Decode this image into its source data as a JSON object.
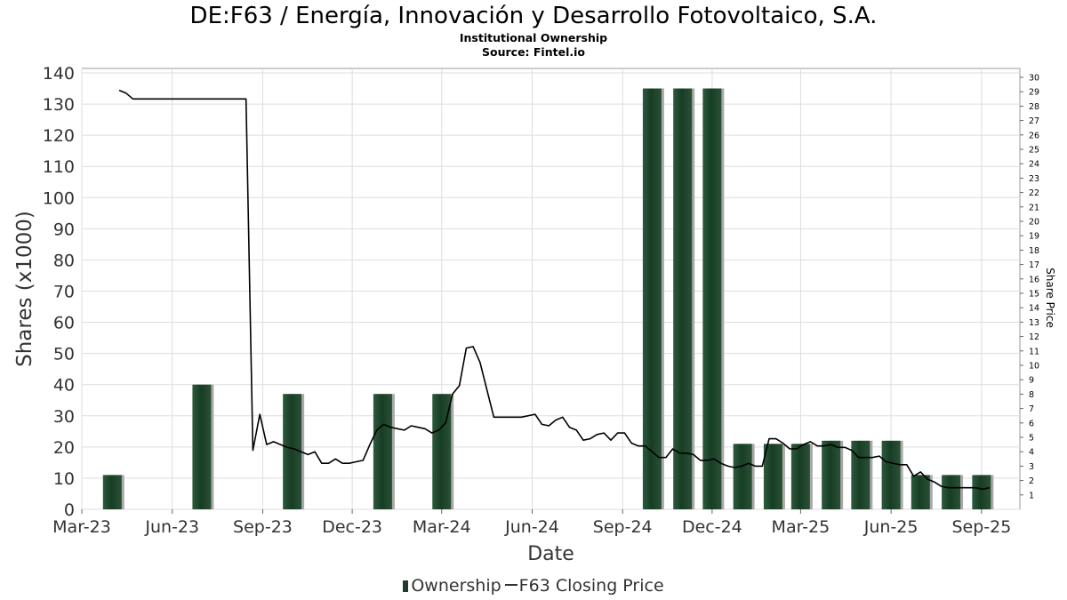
{
  "title": "DE:F63 / Energía, Innovación y Desarrollo Fotovoltaico, S.A.",
  "subtitle": "Institutional Ownership",
  "source": "Source: Fintel.io",
  "legend": {
    "ownership": "Ownership",
    "price": "F63 Closing Price"
  },
  "colors": {
    "bar": "#1f4a2e",
    "bar_shadow": "#a9a9a9",
    "line": "#000000",
    "grid": "#dddddd"
  },
  "chart_data": {
    "type": "bar",
    "title": "DE:F63 / Energía, Innovación y Desarrollo Fotovoltaico, S.A.",
    "xlabel": "Date",
    "ylabel": "Shares (x1000)",
    "y2label": "Share Price",
    "ylim": [
      0,
      140
    ],
    "y2lim": [
      0,
      30
    ],
    "xlim": [
      "2023-03-01",
      "2025-10-10"
    ],
    "yticks": [
      0,
      10,
      20,
      30,
      40,
      50,
      60,
      70,
      80,
      90,
      100,
      110,
      120,
      130,
      140
    ],
    "y2ticks": [
      1,
      2,
      3,
      4,
      5,
      6,
      7,
      8,
      9,
      10,
      11,
      12,
      13,
      14,
      15,
      16,
      17,
      18,
      19,
      20,
      21,
      22,
      23,
      24,
      25,
      26,
      27,
      28,
      29,
      30
    ],
    "xticks": [
      {
        "date": "2023-03-01",
        "label": "Mar-23"
      },
      {
        "date": "2023-06-01",
        "label": "Jun-23"
      },
      {
        "date": "2023-09-01",
        "label": "Sep-23"
      },
      {
        "date": "2023-12-01",
        "label": "Dec-23"
      },
      {
        "date": "2024-03-01",
        "label": "Mar-24"
      },
      {
        "date": "2024-06-01",
        "label": "Jun-24"
      },
      {
        "date": "2024-09-01",
        "label": "Sep-24"
      },
      {
        "date": "2024-12-01",
        "label": "Dec-24"
      },
      {
        "date": "2025-03-01",
        "label": "Mar-25"
      },
      {
        "date": "2025-06-01",
        "label": "Jun-25"
      },
      {
        "date": "2025-09-01",
        "label": "Sep-25"
      }
    ],
    "grid": true,
    "legend_position": "bottom",
    "series": [
      {
        "name": "Ownership",
        "type": "bar",
        "axis": "left",
        "points": [
          {
            "x": "2023-04-01",
            "y": 11
          },
          {
            "x": "2023-07-01",
            "y": 40
          },
          {
            "x": "2023-10-01",
            "y": 37
          },
          {
            "x": "2024-01-01",
            "y": 37
          },
          {
            "x": "2024-03-01",
            "y": 37
          },
          {
            "x": "2024-10-01",
            "y": 135
          },
          {
            "x": "2024-11-01",
            "y": 135
          },
          {
            "x": "2024-12-01",
            "y": 135
          },
          {
            "x": "2025-01-01",
            "y": 21
          },
          {
            "x": "2025-02-01",
            "y": 21
          },
          {
            "x": "2025-03-01",
            "y": 21
          },
          {
            "x": "2025-04-01",
            "y": 22
          },
          {
            "x": "2025-05-01",
            "y": 22
          },
          {
            "x": "2025-06-01",
            "y": 22
          },
          {
            "x": "2025-07-01",
            "y": 11
          },
          {
            "x": "2025-08-01",
            "y": 11
          },
          {
            "x": "2025-09-01",
            "y": 11
          }
        ]
      },
      {
        "name": "F63 Closing Price",
        "type": "line",
        "axis": "right",
        "points": [
          {
            "x": "2023-04-08",
            "y": 29.1
          },
          {
            "x": "2023-04-15",
            "y": 28.9
          },
          {
            "x": "2023-04-22",
            "y": 28.5
          },
          {
            "x": "2023-05-15",
            "y": 28.5
          },
          {
            "x": "2023-06-15",
            "y": 28.5
          },
          {
            "x": "2023-07-15",
            "y": 28.5
          },
          {
            "x": "2023-08-15",
            "y": 28.5
          },
          {
            "x": "2023-08-22",
            "y": 4.1
          },
          {
            "x": "2023-08-29",
            "y": 6.6
          },
          {
            "x": "2023-09-05",
            "y": 4.5
          },
          {
            "x": "2023-09-12",
            "y": 4.7
          },
          {
            "x": "2023-09-19",
            "y": 4.5
          },
          {
            "x": "2023-09-26",
            "y": 4.3
          },
          {
            "x": "2023-10-03",
            "y": 4.2
          },
          {
            "x": "2023-10-10",
            "y": 4.0
          },
          {
            "x": "2023-10-17",
            "y": 3.8
          },
          {
            "x": "2023-10-24",
            "y": 4.0
          },
          {
            "x": "2023-10-31",
            "y": 3.2
          },
          {
            "x": "2023-11-07",
            "y": 3.2
          },
          {
            "x": "2023-11-14",
            "y": 3.5
          },
          {
            "x": "2023-11-21",
            "y": 3.2
          },
          {
            "x": "2023-11-28",
            "y": 3.2
          },
          {
            "x": "2023-12-05",
            "y": 3.3
          },
          {
            "x": "2023-12-12",
            "y": 3.4
          },
          {
            "x": "2023-12-19",
            "y": 4.5
          },
          {
            "x": "2023-12-26",
            "y": 5.5
          },
          {
            "x": "2024-01-02",
            "y": 5.9
          },
          {
            "x": "2024-01-09",
            "y": 5.7
          },
          {
            "x": "2024-01-16",
            "y": 5.6
          },
          {
            "x": "2024-01-23",
            "y": 5.5
          },
          {
            "x": "2024-01-30",
            "y": 5.8
          },
          {
            "x": "2024-02-06",
            "y": 5.7
          },
          {
            "x": "2024-02-13",
            "y": 5.6
          },
          {
            "x": "2024-02-20",
            "y": 5.3
          },
          {
            "x": "2024-02-27",
            "y": 5.5
          },
          {
            "x": "2024-03-05",
            "y": 6.0
          },
          {
            "x": "2024-03-12",
            "y": 8.0
          },
          {
            "x": "2024-03-19",
            "y": 8.6
          },
          {
            "x": "2024-03-26",
            "y": 11.2
          },
          {
            "x": "2024-04-02",
            "y": 11.3
          },
          {
            "x": "2024-04-09",
            "y": 10.2
          },
          {
            "x": "2024-04-16",
            "y": 8.3
          },
          {
            "x": "2024-04-23",
            "y": 6.4
          },
          {
            "x": "2024-05-07",
            "y": 6.4
          },
          {
            "x": "2024-05-21",
            "y": 6.4
          },
          {
            "x": "2024-06-04",
            "y": 6.6
          },
          {
            "x": "2024-06-11",
            "y": 5.9
          },
          {
            "x": "2024-06-18",
            "y": 5.8
          },
          {
            "x": "2024-06-25",
            "y": 6.2
          },
          {
            "x": "2024-07-02",
            "y": 6.4
          },
          {
            "x": "2024-07-09",
            "y": 5.7
          },
          {
            "x": "2024-07-16",
            "y": 5.5
          },
          {
            "x": "2024-07-23",
            "y": 4.8
          },
          {
            "x": "2024-07-30",
            "y": 4.9
          },
          {
            "x": "2024-08-06",
            "y": 5.2
          },
          {
            "x": "2024-08-13",
            "y": 5.3
          },
          {
            "x": "2024-08-20",
            "y": 4.8
          },
          {
            "x": "2024-08-27",
            "y": 5.3
          },
          {
            "x": "2024-09-03",
            "y": 5.3
          },
          {
            "x": "2024-09-10",
            "y": 4.6
          },
          {
            "x": "2024-09-17",
            "y": 4.4
          },
          {
            "x": "2024-09-24",
            "y": 4.4
          },
          {
            "x": "2024-10-01",
            "y": 4.0
          },
          {
            "x": "2024-10-08",
            "y": 3.6
          },
          {
            "x": "2024-10-15",
            "y": 3.6
          },
          {
            "x": "2024-10-22",
            "y": 4.2
          },
          {
            "x": "2024-10-29",
            "y": 3.9
          },
          {
            "x": "2024-11-05",
            "y": 3.9
          },
          {
            "x": "2024-11-12",
            "y": 3.8
          },
          {
            "x": "2024-11-19",
            "y": 3.4
          },
          {
            "x": "2024-11-26",
            "y": 3.4
          },
          {
            "x": "2024-12-03",
            "y": 3.5
          },
          {
            "x": "2024-12-10",
            "y": 3.2
          },
          {
            "x": "2024-12-17",
            "y": 3.0
          },
          {
            "x": "2024-12-24",
            "y": 2.9
          },
          {
            "x": "2024-12-31",
            "y": 3.0
          },
          {
            "x": "2025-01-07",
            "y": 3.2
          },
          {
            "x": "2025-01-14",
            "y": 3.0
          },
          {
            "x": "2025-01-21",
            "y": 3.0
          },
          {
            "x": "2025-01-28",
            "y": 4.9
          },
          {
            "x": "2025-02-04",
            "y": 4.9
          },
          {
            "x": "2025-02-11",
            "y": 4.6
          },
          {
            "x": "2025-02-18",
            "y": 4.2
          },
          {
            "x": "2025-02-25",
            "y": 4.2
          },
          {
            "x": "2025-03-04",
            "y": 4.5
          },
          {
            "x": "2025-03-11",
            "y": 4.7
          },
          {
            "x": "2025-03-18",
            "y": 4.4
          },
          {
            "x": "2025-03-25",
            "y": 4.4
          },
          {
            "x": "2025-04-01",
            "y": 4.5
          },
          {
            "x": "2025-04-08",
            "y": 4.3
          },
          {
            "x": "2025-04-15",
            "y": 4.3
          },
          {
            "x": "2025-04-22",
            "y": 4.1
          },
          {
            "x": "2025-04-29",
            "y": 3.6
          },
          {
            "x": "2025-05-06",
            "y": 3.6
          },
          {
            "x": "2025-05-13",
            "y": 3.6
          },
          {
            "x": "2025-05-20",
            "y": 3.7
          },
          {
            "x": "2025-05-27",
            "y": 3.3
          },
          {
            "x": "2025-06-03",
            "y": 3.2
          },
          {
            "x": "2025-06-10",
            "y": 3.1
          },
          {
            "x": "2025-06-17",
            "y": 3.1
          },
          {
            "x": "2025-06-24",
            "y": 2.3
          },
          {
            "x": "2025-07-01",
            "y": 2.6
          },
          {
            "x": "2025-07-08",
            "y": 2.1
          },
          {
            "x": "2025-07-15",
            "y": 1.9
          },
          {
            "x": "2025-07-22",
            "y": 1.6
          },
          {
            "x": "2025-07-29",
            "y": 1.5
          },
          {
            "x": "2025-08-05",
            "y": 1.5
          },
          {
            "x": "2025-08-12",
            "y": 1.5
          },
          {
            "x": "2025-08-19",
            "y": 1.5
          },
          {
            "x": "2025-08-26",
            "y": 1.5
          },
          {
            "x": "2025-09-02",
            "y": 1.4
          },
          {
            "x": "2025-09-09",
            "y": 1.5
          }
        ]
      }
    ]
  }
}
